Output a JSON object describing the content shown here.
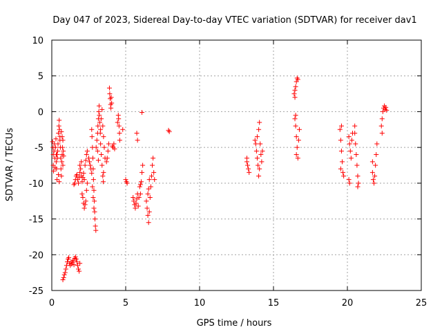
{
  "chart_data": {
    "type": "scatter",
    "title": "Day 047 of 2023, Sidereal Day-to-day VTEC variation (SDTVAR) for receiver dav1",
    "xlabel": "GPS time / hours",
    "ylabel": "SDTVAR / TECUs",
    "xlim": [
      0,
      25
    ],
    "ylim": [
      -25,
      10
    ],
    "xticks": [
      0,
      5,
      10,
      15,
      20,
      25
    ],
    "yticks": [
      -25,
      -20,
      -15,
      -10,
      -5,
      0,
      5,
      10
    ],
    "grid": true,
    "marker": "+",
    "color": "#ff0000",
    "series": [
      {
        "name": "SDTVAR",
        "points": [
          [
            0.05,
            -4.2
          ],
          [
            0.08,
            -5.0
          ],
          [
            0.1,
            -6.0
          ],
          [
            0.1,
            -7.5
          ],
          [
            0.12,
            -8.3
          ],
          [
            0.15,
            -5.5
          ],
          [
            0.18,
            -4.5
          ],
          [
            0.2,
            -6.5
          ],
          [
            0.22,
            -7.8
          ],
          [
            0.25,
            -5.0
          ],
          [
            0.28,
            -3.8
          ],
          [
            0.3,
            -6.0
          ],
          [
            0.32,
            -8.0
          ],
          [
            0.35,
            -9.5
          ],
          [
            0.38,
            -6.5
          ],
          [
            0.4,
            -5.5
          ],
          [
            0.42,
            -4.5
          ],
          [
            0.45,
            -3.0
          ],
          [
            0.48,
            -2.0
          ],
          [
            0.5,
            -1.2
          ],
          [
            0.52,
            -2.5
          ],
          [
            0.55,
            -3.5
          ],
          [
            0.58,
            -5.0
          ],
          [
            0.6,
            -6.5
          ],
          [
            0.62,
            -8.0
          ],
          [
            0.65,
            -9.0
          ],
          [
            0.68,
            -7.0
          ],
          [
            0.7,
            -6.0
          ],
          [
            0.72,
            -5.0
          ],
          [
            0.75,
            -4.0
          ],
          [
            0.78,
            -5.5
          ],
          [
            0.8,
            -6.2
          ],
          [
            0.3,
            -7.0
          ],
          [
            0.35,
            -6.0
          ],
          [
            0.45,
            -8.8
          ],
          [
            0.5,
            -9.8
          ],
          [
            0.55,
            -4.0
          ],
          [
            0.65,
            -2.8
          ],
          [
            0.7,
            -3.5
          ],
          [
            0.75,
            -7.5
          ],
          [
            0.75,
            -23.5
          ],
          [
            0.8,
            -23.2
          ],
          [
            0.85,
            -22.8
          ],
          [
            0.9,
            -22.5
          ],
          [
            0.95,
            -22.0
          ],
          [
            1.0,
            -21.5
          ],
          [
            1.05,
            -21.0
          ],
          [
            1.1,
            -20.6
          ],
          [
            1.15,
            -20.4
          ],
          [
            1.2,
            -21.2
          ],
          [
            1.25,
            -21.5
          ],
          [
            1.3,
            -21.0
          ],
          [
            1.35,
            -21.3
          ],
          [
            1.4,
            -21.0
          ],
          [
            1.45,
            -20.8
          ],
          [
            1.5,
            -21.4
          ],
          [
            1.55,
            -20.5
          ],
          [
            1.6,
            -20.3
          ],
          [
            1.65,
            -20.6
          ],
          [
            1.7,
            -21.0
          ],
          [
            1.75,
            -21.5
          ],
          [
            1.8,
            -22.0
          ],
          [
            1.85,
            -22.3
          ],
          [
            1.9,
            -21.2
          ],
          [
            1.5,
            -10.2
          ],
          [
            1.55,
            -10.0
          ],
          [
            1.6,
            -9.5
          ],
          [
            1.65,
            -9.0
          ],
          [
            1.7,
            -8.8
          ],
          [
            1.75,
            -9.5
          ],
          [
            1.8,
            -10.0
          ],
          [
            1.85,
            -9.2
          ],
          [
            1.9,
            -8.5
          ],
          [
            1.95,
            -8.0
          ],
          [
            2.0,
            -9.0
          ],
          [
            2.05,
            -9.8
          ],
          [
            2.1,
            -9.2
          ],
          [
            2.15,
            -8.6
          ],
          [
            2.2,
            -9.5
          ],
          [
            1.9,
            -7.5
          ],
          [
            2.0,
            -7.0
          ],
          [
            2.05,
            -11.5
          ],
          [
            2.1,
            -12.0
          ],
          [
            2.15,
            -12.8
          ],
          [
            2.2,
            -13.5
          ],
          [
            2.25,
            -13.0
          ],
          [
            2.3,
            -12.5
          ],
          [
            2.35,
            -11.0
          ],
          [
            2.4,
            -10.0
          ],
          [
            2.25,
            -7.5
          ],
          [
            2.3,
            -6.8
          ],
          [
            2.35,
            -6.0
          ],
          [
            2.4,
            -5.5
          ],
          [
            2.5,
            -6.5
          ],
          [
            2.55,
            -7.0
          ],
          [
            2.6,
            -7.5
          ],
          [
            2.65,
            -8.0
          ],
          [
            2.7,
            -8.6
          ],
          [
            2.7,
            -2.5
          ],
          [
            2.72,
            -3.5
          ],
          [
            2.75,
            -5.0
          ],
          [
            2.78,
            -6.5
          ],
          [
            2.8,
            -8.0
          ],
          [
            2.82,
            -9.5
          ],
          [
            2.85,
            -11.0
          ],
          [
            2.88,
            -12.5
          ],
          [
            2.9,
            -14.0
          ],
          [
            2.92,
            -15.0
          ],
          [
            2.95,
            -16.0
          ],
          [
            2.98,
            -16.6
          ],
          [
            2.75,
            -10.5
          ],
          [
            2.8,
            -12.0
          ],
          [
            2.85,
            -13.5
          ],
          [
            3.0,
            -5.0
          ],
          [
            3.05,
            -4.0
          ],
          [
            3.1,
            -3.0
          ],
          [
            3.12,
            -2.0
          ],
          [
            3.15,
            -1.0
          ],
          [
            3.18,
            0.0
          ],
          [
            3.2,
            0.8
          ],
          [
            3.22,
            -0.5
          ],
          [
            3.25,
            -1.5
          ],
          [
            3.28,
            -3.0
          ],
          [
            3.3,
            -4.5
          ],
          [
            3.35,
            -6.0
          ],
          [
            3.4,
            -7.5
          ],
          [
            3.45,
            -9.0
          ],
          [
            3.48,
            -9.8
          ],
          [
            3.5,
            -8.5
          ],
          [
            3.3,
            -2.5
          ],
          [
            3.35,
            -1.0
          ],
          [
            3.4,
            0.3
          ],
          [
            3.45,
            -2.0
          ],
          [
            3.5,
            -3.5
          ],
          [
            3.55,
            -5.0
          ],
          [
            3.6,
            -6.5
          ],
          [
            3.1,
            -5.5
          ],
          [
            3.15,
            -6.8
          ],
          [
            3.7,
            -7.0
          ],
          [
            3.75,
            -6.5
          ],
          [
            3.8,
            -5.5
          ],
          [
            3.85,
            -4.5
          ],
          [
            3.9,
            3.3
          ],
          [
            3.92,
            2.5
          ],
          [
            3.95,
            1.8
          ],
          [
            3.98,
            1.0
          ],
          [
            4.0,
            0.5
          ],
          [
            4.02,
            2.0
          ],
          [
            4.05,
            1.2
          ],
          [
            4.1,
            -4.8
          ],
          [
            4.15,
            -5.0
          ],
          [
            4.2,
            -4.5
          ],
          [
            4.25,
            -5.2
          ],
          [
            4.5,
            -0.5
          ],
          [
            4.52,
            -1.0
          ],
          [
            4.55,
            -2.0
          ],
          [
            4.58,
            -3.0
          ],
          [
            4.6,
            -4.0
          ],
          [
            4.45,
            -1.5
          ],
          [
            4.8,
            -2.5
          ],
          [
            5.0,
            -9.5
          ],
          [
            5.05,
            -9.8
          ],
          [
            5.1,
            -10.0
          ],
          [
            5.5,
            -12.0
          ],
          [
            5.55,
            -12.5
          ],
          [
            5.6,
            -13.0
          ],
          [
            5.65,
            -13.5
          ],
          [
            5.7,
            -12.8
          ],
          [
            5.75,
            -12.2
          ],
          [
            5.8,
            -11.5
          ],
          [
            5.85,
            -13.2
          ],
          [
            5.9,
            -12.0
          ],
          [
            5.95,
            -10.5
          ],
          [
            6.0,
            -10.2
          ],
          [
            6.05,
            -9.8
          ],
          [
            6.1,
            -8.5
          ],
          [
            6.15,
            -7.5
          ],
          [
            6.0,
            -11.5
          ],
          [
            5.75,
            -3.0
          ],
          [
            5.8,
            -4.0
          ],
          [
            6.1,
            -0.1
          ],
          [
            6.4,
            -12.5
          ],
          [
            6.45,
            -13.5
          ],
          [
            6.5,
            -14.5
          ],
          [
            6.55,
            -15.5
          ],
          [
            6.6,
            -14.0
          ],
          [
            6.65,
            -12.0
          ],
          [
            6.7,
            -10.5
          ],
          [
            6.75,
            -9.0
          ],
          [
            6.8,
            -7.5
          ],
          [
            6.85,
            -6.5
          ],
          [
            6.9,
            -8.5
          ],
          [
            6.95,
            -9.5
          ],
          [
            6.5,
            -11.5
          ],
          [
            6.55,
            -10.8
          ],
          [
            6.6,
            -9.5
          ],
          [
            7.9,
            -2.6
          ],
          [
            7.95,
            -2.8
          ],
          [
            13.2,
            -7.0
          ],
          [
            13.25,
            -7.5
          ],
          [
            13.3,
            -8.0
          ],
          [
            13.35,
            -8.5
          ],
          [
            13.2,
            -6.5
          ],
          [
            13.75,
            -4.0
          ],
          [
            13.8,
            -4.5
          ],
          [
            13.85,
            -5.5
          ],
          [
            13.9,
            -6.5
          ],
          [
            13.95,
            -7.5
          ],
          [
            14.0,
            -9.0
          ],
          [
            14.05,
            -8.0
          ],
          [
            13.9,
            -3.5
          ],
          [
            14.0,
            -2.5
          ],
          [
            14.05,
            -1.5
          ],
          [
            14.1,
            -4.5
          ],
          [
            14.15,
            -6.0
          ],
          [
            14.2,
            -7.0
          ],
          [
            14.25,
            -5.5
          ],
          [
            16.4,
            2.5
          ],
          [
            16.45,
            3.0
          ],
          [
            16.5,
            3.5
          ],
          [
            16.55,
            4.2
          ],
          [
            16.6,
            4.7
          ],
          [
            16.65,
            4.5
          ],
          [
            16.45,
            2.0
          ],
          [
            16.45,
            -1.0
          ],
          [
            16.5,
            -2.0
          ],
          [
            16.55,
            -3.5
          ],
          [
            16.6,
            -5.0
          ],
          [
            16.65,
            -6.5
          ],
          [
            16.5,
            -0.5
          ],
          [
            16.7,
            -4.0
          ],
          [
            16.75,
            -2.5
          ],
          [
            16.55,
            -6.0
          ],
          [
            19.5,
            -2.5
          ],
          [
            19.55,
            -4.0
          ],
          [
            19.6,
            -5.5
          ],
          [
            19.65,
            -7.0
          ],
          [
            19.7,
            -8.5
          ],
          [
            19.75,
            -9.0
          ],
          [
            19.6,
            -2.0
          ],
          [
            19.55,
            -8.0
          ],
          [
            20.1,
            -3.5
          ],
          [
            20.15,
            -4.5
          ],
          [
            20.2,
            -5.5
          ],
          [
            20.25,
            -6.5
          ],
          [
            20.3,
            -4.0
          ],
          [
            20.35,
            -3.0
          ],
          [
            20.1,
            -9.5
          ],
          [
            20.15,
            -10.0
          ],
          [
            20.5,
            -3.0
          ],
          [
            20.55,
            -4.5
          ],
          [
            20.6,
            -6.0
          ],
          [
            20.65,
            -7.5
          ],
          [
            20.7,
            -9.0
          ],
          [
            20.75,
            -10.0
          ],
          [
            20.7,
            -10.5
          ],
          [
            20.5,
            -2.0
          ],
          [
            21.7,
            -8.5
          ],
          [
            21.75,
            -9.5
          ],
          [
            21.8,
            -10.0
          ],
          [
            21.85,
            -9.0
          ],
          [
            21.9,
            -7.5
          ],
          [
            21.95,
            -6.0
          ],
          [
            22.0,
            -4.5
          ],
          [
            21.7,
            -7.0
          ],
          [
            22.3,
            -2.0
          ],
          [
            22.35,
            -1.0
          ],
          [
            22.4,
            0.0
          ],
          [
            22.45,
            0.5
          ],
          [
            22.5,
            0.8
          ],
          [
            22.55,
            0.3
          ],
          [
            22.6,
            0.6
          ],
          [
            22.65,
            0.2
          ],
          [
            22.35,
            -3.0
          ]
        ]
      }
    ]
  }
}
